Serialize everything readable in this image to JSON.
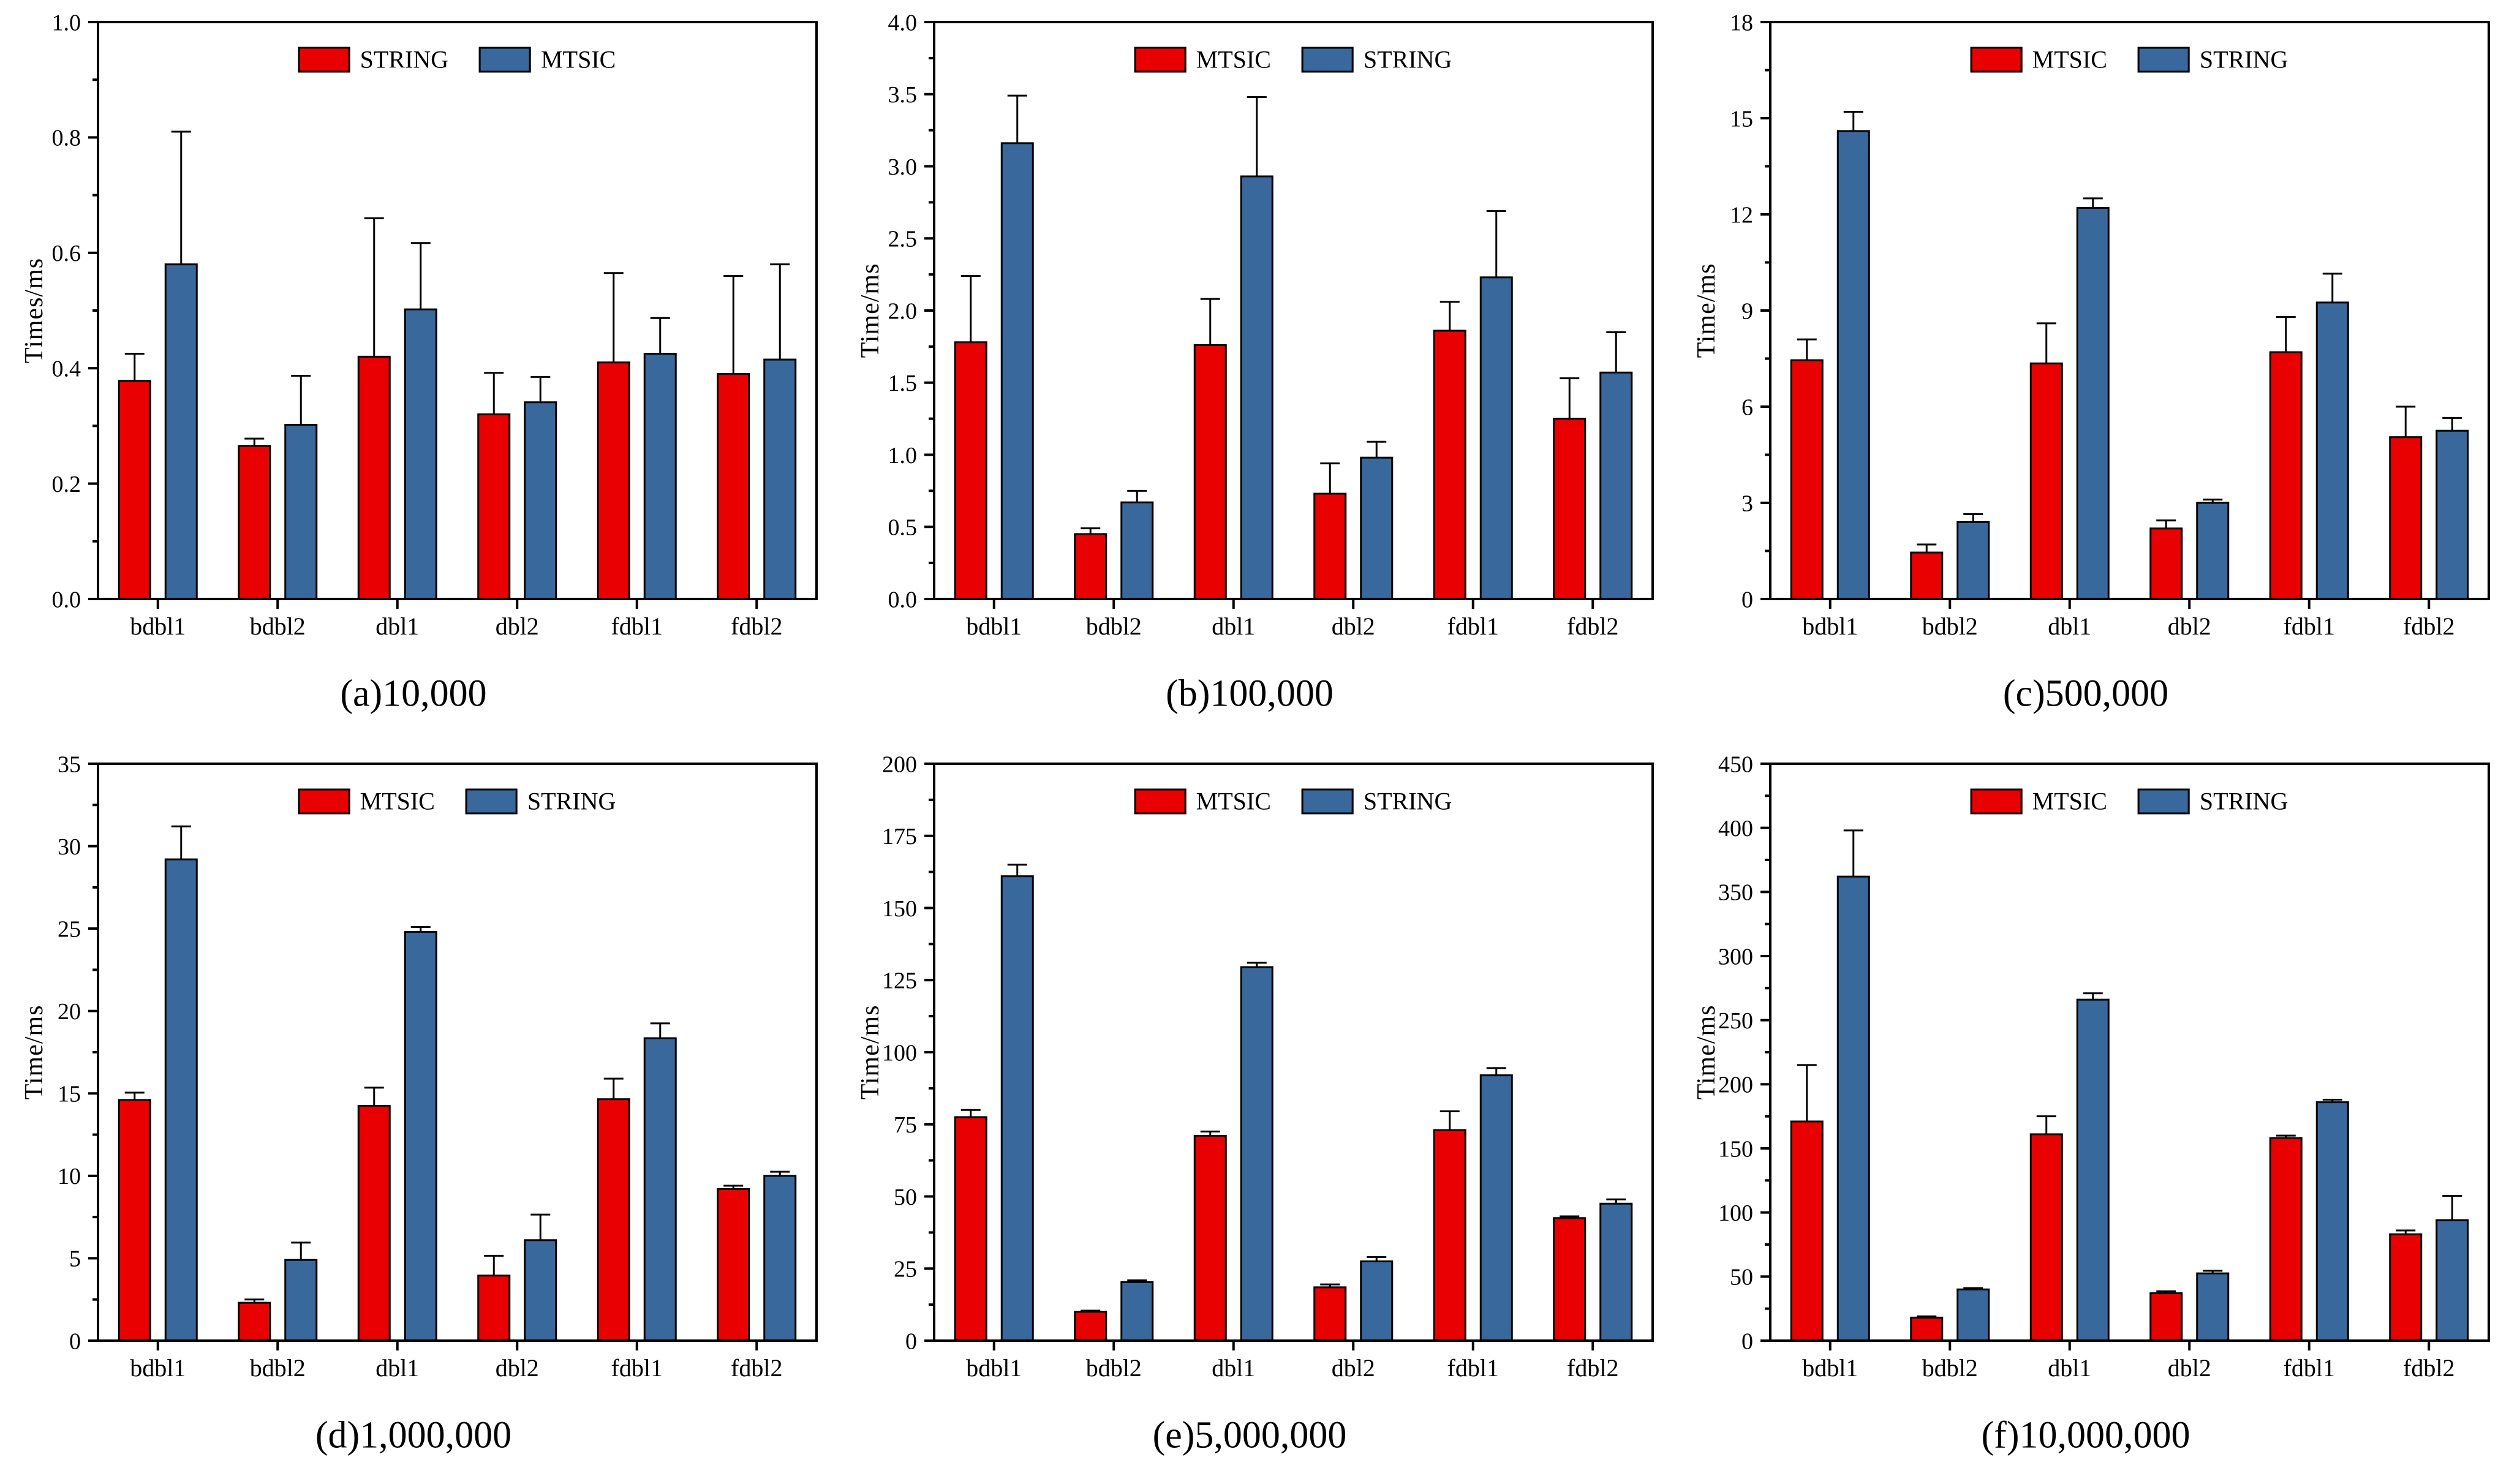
{
  "colors": {
    "series_red": "#e90000",
    "series_blue": "#39699c",
    "axis": "#000000",
    "background": "#ffffff"
  },
  "chart_data": [
    {
      "id": "a",
      "type": "bar",
      "caption": "(a)10,000",
      "ylabel": "Times/ms",
      "ylim": [
        0,
        1.0
      ],
      "ytick_step": 0.2,
      "minor_tick_step": 0.1,
      "ytick_decimals": 1,
      "grid": false,
      "legend_position": "top-center",
      "categories": [
        "bdbl1",
        "bdbl2",
        "dbl1",
        "dbl2",
        "fdbl1",
        "fdbl2"
      ],
      "series": [
        {
          "name": "STRING",
          "color": "#e90000",
          "values": [
            0.378,
            0.265,
            0.42,
            0.32,
            0.41,
            0.39
          ],
          "errors_up": [
            0.047,
            0.013,
            0.24,
            0.072,
            0.155,
            0.17
          ]
        },
        {
          "name": "MTSIC",
          "color": "#39699c",
          "values": [
            0.58,
            0.302,
            0.502,
            0.341,
            0.425,
            0.415
          ],
          "errors_up": [
            0.23,
            0.085,
            0.115,
            0.044,
            0.062,
            0.165
          ]
        }
      ]
    },
    {
      "id": "b",
      "type": "bar",
      "caption": "(b)100,000",
      "ylabel": "Time/ms",
      "ylim": [
        0,
        4.0
      ],
      "ytick_step": 0.5,
      "minor_tick_step": 0.25,
      "ytick_decimals": 1,
      "grid": false,
      "legend_position": "top-center",
      "categories": [
        "bdbl1",
        "bdbl2",
        "dbl1",
        "dbl2",
        "fdbl1",
        "fdbl2"
      ],
      "series": [
        {
          "name": "MTSIC",
          "color": "#e90000",
          "values": [
            1.78,
            0.45,
            1.76,
            0.73,
            1.86,
            1.25
          ],
          "errors_up": [
            0.46,
            0.04,
            0.32,
            0.21,
            0.2,
            0.28
          ]
        },
        {
          "name": "STRING",
          "color": "#39699c",
          "values": [
            3.16,
            0.67,
            2.93,
            0.98,
            2.23,
            1.57
          ],
          "errors_up": [
            0.33,
            0.08,
            0.55,
            0.11,
            0.46,
            0.28
          ]
        }
      ]
    },
    {
      "id": "c",
      "type": "bar",
      "caption": "(c)500,000",
      "ylabel": "Time/ms",
      "ylim": [
        0,
        18
      ],
      "ytick_step": 3,
      "minor_tick_step": 1.5,
      "ytick_decimals": 0,
      "grid": false,
      "legend_position": "top-center",
      "categories": [
        "bdbl1",
        "bdbl2",
        "dbl1",
        "dbl2",
        "fdbl1",
        "fdbl2"
      ],
      "series": [
        {
          "name": "MTSIC",
          "color": "#e90000",
          "values": [
            7.45,
            1.45,
            7.35,
            2.2,
            7.7,
            5.05
          ],
          "errors_up": [
            0.65,
            0.25,
            1.25,
            0.25,
            1.1,
            0.95
          ]
        },
        {
          "name": "STRING",
          "color": "#39699c",
          "values": [
            14.6,
            2.4,
            12.2,
            3.0,
            9.25,
            5.25
          ],
          "errors_up": [
            0.6,
            0.25,
            0.3,
            0.1,
            0.9,
            0.4
          ]
        }
      ]
    },
    {
      "id": "d",
      "type": "bar",
      "caption": "(d)1,000,000",
      "ylabel": "Time/ms",
      "ylim": [
        0,
        35
      ],
      "ytick_step": 5,
      "minor_tick_step": 2.5,
      "ytick_decimals": 0,
      "grid": false,
      "legend_position": "top-center",
      "categories": [
        "bdbl1",
        "bdbl2",
        "dbl1",
        "dbl2",
        "fdbl1",
        "fdbl2"
      ],
      "series": [
        {
          "name": "MTSIC",
          "color": "#e90000",
          "values": [
            14.6,
            2.3,
            14.25,
            3.95,
            14.65,
            9.2
          ],
          "errors_up": [
            0.45,
            0.2,
            1.1,
            1.2,
            1.25,
            0.2
          ]
        },
        {
          "name": "STRING",
          "color": "#39699c",
          "values": [
            29.2,
            4.9,
            24.8,
            6.1,
            18.35,
            10.0
          ],
          "errors_up": [
            2.0,
            1.05,
            0.3,
            1.55,
            0.9,
            0.25
          ]
        }
      ]
    },
    {
      "id": "e",
      "type": "bar",
      "caption": "(e)5,000,000",
      "ylabel": "Time/ms",
      "ylim": [
        0,
        200
      ],
      "ytick_step": 25,
      "minor_tick_step": 12.5,
      "ytick_decimals": 0,
      "grid": false,
      "legend_position": "top-center",
      "categories": [
        "bdbl1",
        "bdbl2",
        "dbl1",
        "dbl2",
        "fdbl1",
        "fdbl2"
      ],
      "series": [
        {
          "name": "MTSIC",
          "color": "#e90000",
          "values": [
            77.5,
            10,
            71,
            18.5,
            73,
            42.5
          ],
          "errors_up": [
            2.5,
            0.4,
            1.5,
            1.0,
            6.5,
            0.6
          ]
        },
        {
          "name": "STRING",
          "color": "#39699c",
          "values": [
            161,
            20.3,
            129.5,
            27.5,
            92,
            47.5
          ],
          "errors_up": [
            4,
            0.6,
            1.5,
            1.5,
            2.5,
            1.5
          ]
        }
      ]
    },
    {
      "id": "f",
      "type": "bar",
      "caption": "(f)10,000,000",
      "ylabel": "Time/ms",
      "ylim": [
        0,
        450
      ],
      "ytick_step": 50,
      "minor_tick_step": 25,
      "ytick_decimals": 0,
      "grid": false,
      "legend_position": "top-center",
      "categories": [
        "bdbl1",
        "bdbl2",
        "dbl1",
        "dbl2",
        "fdbl1",
        "fdbl2"
      ],
      "series": [
        {
          "name": "MTSIC",
          "color": "#e90000",
          "values": [
            171,
            18,
            161,
            37,
            158,
            83
          ],
          "errors_up": [
            44,
            1,
            14,
            1.5,
            2,
            3
          ]
        },
        {
          "name": "STRING",
          "color": "#39699c",
          "values": [
            362,
            40,
            266,
            52.5,
            186,
            94
          ],
          "errors_up": [
            36,
            1,
            5,
            2,
            2,
            19
          ]
        }
      ]
    }
  ]
}
